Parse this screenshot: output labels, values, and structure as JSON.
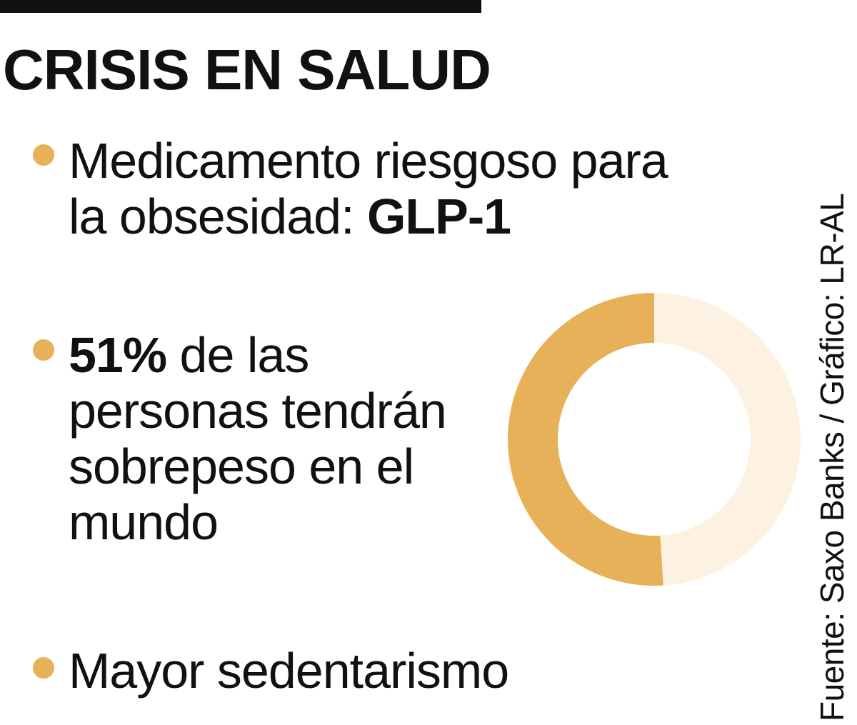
{
  "header": {
    "title": "CRISIS EN SALUD"
  },
  "items": [
    {
      "line1": "Medicamento riesgoso para",
      "line2_prefix": "la obsesidad: ",
      "line2_bold": "GLP-1"
    },
    {
      "bold_prefix": "51%",
      "line1_rest": " de las",
      "line2": "personas tendrán",
      "line3": "sobrepeso en el",
      "line4": "mundo"
    },
    {
      "line1": "Mayor sedentarismo"
    }
  ],
  "source": "Fuente: Saxo Banks / Gráfico: LR-AL",
  "colors": {
    "accent": "#e6b158",
    "remainder": "#fdf1e2",
    "text": "#111111",
    "bar": "#111111"
  },
  "chart_data": {
    "type": "pie",
    "style": "donut",
    "series": [
      {
        "values": [
          51,
          49
        ]
      }
    ],
    "colors": [
      "#e6b158",
      "#fdf1e2"
    ],
    "title": "",
    "start_angle_deg": 0,
    "direction": "counterclockwise"
  }
}
